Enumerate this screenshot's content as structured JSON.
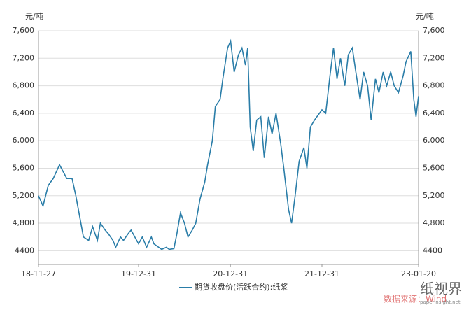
{
  "chart_data": {
    "type": "line",
    "y_unit": "元/吨",
    "y2_unit": "元/吨",
    "x": [
      "18-11-27",
      "18-12-15",
      "19-01-05",
      "19-01-25",
      "19-02-19",
      "19-03-20",
      "19-04-10",
      "19-04-25",
      "19-05-10",
      "19-05-25",
      "19-06-15",
      "19-07-01",
      "19-07-20",
      "19-08-01",
      "19-08-20",
      "19-09-01",
      "19-09-20",
      "19-10-01",
      "19-10-20",
      "19-11-01",
      "19-11-20",
      "19-12-01",
      "19-12-31",
      "20-01-15",
      "20-02-01",
      "20-02-20",
      "20-03-01",
      "20-03-20",
      "20-04-01",
      "20-04-20",
      "20-05-01",
      "20-05-20",
      "20-06-01",
      "20-06-15",
      "20-07-01",
      "20-07-15",
      "20-08-01",
      "20-08-15",
      "20-09-01",
      "20-09-20",
      "20-10-01",
      "20-10-20",
      "20-11-01",
      "20-11-20",
      "20-12-01",
      "20-12-20",
      "21-01-01",
      "21-01-15",
      "21-02-01",
      "21-02-15",
      "21-03-01",
      "21-03-10",
      "21-03-20",
      "21-04-01",
      "21-04-15",
      "21-05-01",
      "21-05-15",
      "21-06-01",
      "21-06-15",
      "21-07-01",
      "21-07-20",
      "21-08-01",
      "21-08-20",
      "21-09-01",
      "21-09-15",
      "21-10-01",
      "21-10-20",
      "21-11-01",
      "21-11-15",
      "21-12-01",
      "21-12-31",
      "22-01-15",
      "22-02-01",
      "22-02-15",
      "22-03-01",
      "22-03-15",
      "22-04-01",
      "22-04-15",
      "22-05-01",
      "22-05-15",
      "22-06-01",
      "22-06-15",
      "22-07-01",
      "22-07-15",
      "22-08-01",
      "22-08-15",
      "22-09-01",
      "22-09-15",
      "22-10-01",
      "22-10-15",
      "22-11-01",
      "22-11-20",
      "22-12-01",
      "22-12-20",
      "23-01-01",
      "23-01-10",
      "23-01-20"
    ],
    "series": [
      {
        "name": "期货收盘价(活跃合约):纸浆",
        "color": "#2a7da8",
        "values": [
          5200,
          5050,
          5350,
          5450,
          5650,
          5450,
          5450,
          5200,
          4900,
          4600,
          4550,
          4750,
          4550,
          4800,
          4700,
          4650,
          4550,
          4450,
          4600,
          4550,
          4650,
          4700,
          4500,
          4600,
          4450,
          4600,
          4500,
          4450,
          4420,
          4450,
          4420,
          4430,
          4650,
          4950,
          4800,
          4600,
          4700,
          4800,
          5150,
          5400,
          5650,
          6000,
          6500,
          6600,
          6900,
          7350,
          7450,
          7000,
          7250,
          7350,
          7100,
          7350,
          6200,
          5850,
          6300,
          6350,
          5750,
          6350,
          6100,
          6400,
          5950,
          5600,
          5000,
          4800,
          5200,
          5700,
          5900,
          5600,
          6200,
          6300,
          6450,
          6400,
          6950,
          7350,
          6900,
          7200,
          6800,
          7250,
          7350,
          7000,
          6600,
          7000,
          6800,
          6300,
          6900,
          6700,
          7000,
          6800,
          7000,
          6800,
          6700,
          6950,
          7150,
          7300,
          6600,
          6350,
          6650
        ]
      }
    ],
    "xticks": [
      "18-11-27",
      "19-12-31",
      "20-12-31",
      "21-12-31",
      "23-01-20"
    ],
    "ylim": [
      4200,
      7600
    ],
    "yticks": [
      4400,
      {
        "value": 4800,
        "label": "4,800"
      },
      {
        "value": 5200,
        "label": "5,200"
      },
      {
        "value": 5600,
        "label": "5,600"
      },
      {
        "value": 6000,
        "label": "6,000"
      },
      {
        "value": 6400,
        "label": "6,400"
      },
      {
        "value": 6800,
        "label": "6,800"
      },
      {
        "value": 7200,
        "label": "7,200"
      },
      {
        "value": 7600,
        "label": "7,600"
      }
    ],
    "grid": true,
    "source": "数据来源：Wind",
    "logo": "纸视界",
    "logo_url": "paperinsight.net"
  }
}
